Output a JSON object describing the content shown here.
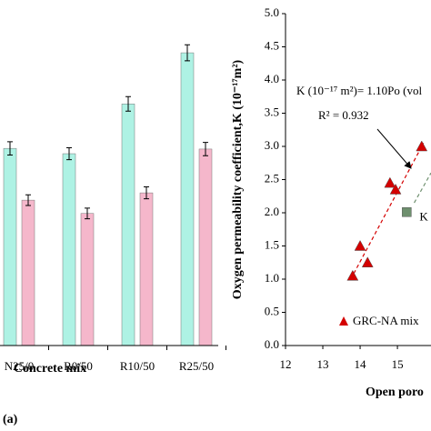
{
  "chart_data": [
    {
      "type": "bar",
      "xlabel": "Concrete mix",
      "panel": "(a)",
      "categories": [
        "N25/0",
        "R0/50",
        "R10/50",
        "R25/50"
      ],
      "ylim": [
        0,
        5
      ],
      "series": [
        {
          "color": "#aef2e4",
          "values": [
            2.97,
            2.89,
            3.64,
            4.41
          ],
          "errors": [
            0.1,
            0.09,
            0.11,
            0.12
          ]
        },
        {
          "color": "#f5b7cb",
          "values": [
            2.19,
            1.99,
            2.3,
            2.96
          ],
          "errors": [
            0.08,
            0.08,
            0.09,
            0.1
          ]
        }
      ]
    },
    {
      "type": "scatter",
      "xlabel": "Open poro",
      "ylabel": "Oxygen permeability coefficient,K (10⁻¹⁷m²)",
      "annotations": [
        "K (10⁻¹⁷ m²)= 1.10Po (vol",
        "R² = 0.932"
      ],
      "xlim": [
        12,
        15.9
      ],
      "xticks": [
        12,
        13,
        14,
        15
      ],
      "ylim": [
        0,
        5
      ],
      "yticks": [
        {
          "value": 0,
          "label": "0.0"
        },
        {
          "value": 0.5,
          "label": "0.5"
        },
        {
          "value": 1,
          "label": "1.0"
        },
        {
          "value": 1.5,
          "label": "1.5"
        },
        {
          "value": 2,
          "label": "2.0"
        },
        {
          "value": 2.5,
          "label": "2.5"
        },
        {
          "value": 3,
          "label": "3.0"
        },
        {
          "value": 3.5,
          "label": "3.5"
        },
        {
          "value": 4,
          "label": "4.0"
        },
        {
          "value": 4.5,
          "label": "4.5"
        },
        {
          "value": 5,
          "label": "5.0"
        }
      ],
      "series": [
        {
          "name": "GRC-NA mix",
          "color": "#d40000",
          "marker": "triangle",
          "x": [
            13.8,
            14.0,
            14.2,
            14.8,
            14.95,
            15.65
          ],
          "values": [
            1.05,
            1.5,
            1.25,
            2.45,
            2.35,
            3.0
          ],
          "fit": {
            "x": [
              13.75,
              15.7
            ],
            "values": [
              1.0,
              3.05
            ]
          }
        },
        {
          "name": "K",
          "color": "#6e8f6e",
          "marker": "square",
          "x": [
            15.25
          ],
          "values": [
            2.01
          ],
          "fit": {
            "x": [
              15.45,
              15.9
            ],
            "values": [
              2.15,
              2.6
            ]
          }
        }
      ]
    }
  ]
}
